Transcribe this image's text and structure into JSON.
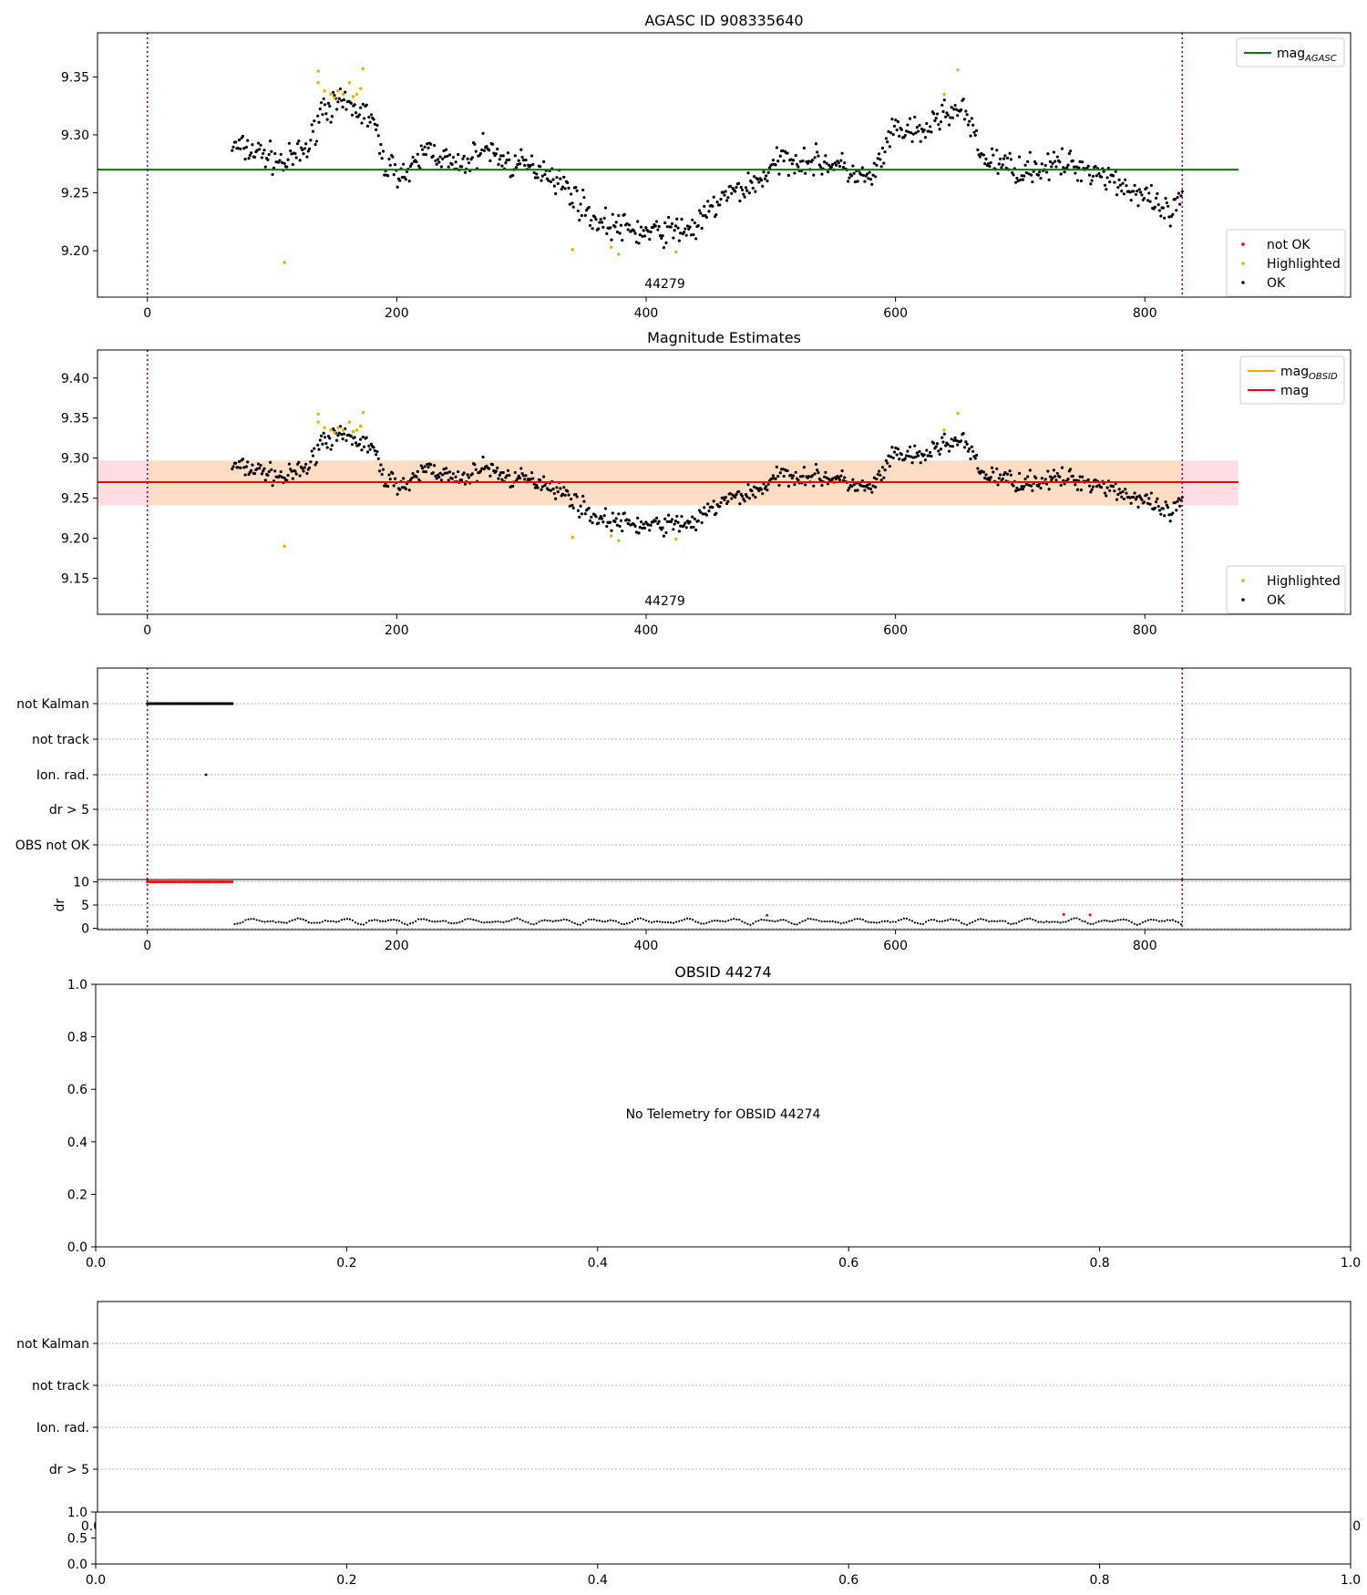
{
  "chart_data": [
    {
      "id": "p1",
      "type": "scatter",
      "title": "AGASC ID 908335640",
      "xlim": [
        -40,
        965
      ],
      "ylim": [
        9.16,
        9.388
      ],
      "x_ticks": [
        "0",
        "200",
        "400",
        "600",
        "800"
      ],
      "x_tick_values": [
        0,
        200,
        400,
        600,
        800
      ],
      "y_ticks": [
        "9.20",
        "9.25",
        "9.30",
        "9.35"
      ],
      "y_tick_values": [
        9.2,
        9.25,
        9.3,
        9.35
      ],
      "vlines": [
        0,
        830
      ],
      "vline_color": "#800080",
      "hline": {
        "y": 9.27,
        "x_range": [
          -40,
          875
        ],
        "color": "#008000"
      },
      "obsid_label": {
        "text": "44279",
        "x": 415
      },
      "legend_top": [
        {
          "label_main": "mag",
          "label_sub": "AGASC",
          "color": "#008000"
        }
      ],
      "legend_bottom": [
        {
          "label": "not OK",
          "color": "#ff0000"
        },
        {
          "label": "Highlighted",
          "color": "#ffa500"
        },
        {
          "label": "OK",
          "color": "#000000"
        }
      ],
      "series": [
        {
          "name": "OK",
          "color": "#000000",
          "x_range": [
            68,
            830
          ],
          "points": 800
        },
        {
          "name": "Highlighted",
          "color": "#ffa500",
          "points": [
            [
              110,
              9.19
            ],
            [
              137,
              9.355
            ],
            [
              137,
              9.345
            ],
            [
              142,
              9.338
            ],
            [
              147,
              9.335
            ],
            [
              150,
              9.332
            ],
            [
              153,
              9.338
            ],
            [
              157,
              9.335
            ],
            [
              162,
              9.345
            ],
            [
              165,
              9.333
            ],
            [
              168,
              9.335
            ],
            [
              171,
              9.34
            ],
            [
              173,
              9.357
            ],
            [
              341,
              9.201
            ],
            [
              372,
              9.203
            ],
            [
              378,
              9.197
            ],
            [
              424,
              9.199
            ],
            [
              639,
              9.335
            ],
            [
              650,
              9.356
            ]
          ]
        }
      ],
      "trend": [
        [
          68,
          9.29
        ],
        [
          90,
          9.285
        ],
        [
          110,
          9.275
        ],
        [
          130,
          9.29
        ],
        [
          140,
          9.325
        ],
        [
          160,
          9.325
        ],
        [
          180,
          9.315
        ],
        [
          190,
          9.275
        ],
        [
          210,
          9.265
        ],
        [
          225,
          9.29
        ],
        [
          250,
          9.27
        ],
        [
          270,
          9.29
        ],
        [
          290,
          9.275
        ],
        [
          320,
          9.27
        ],
        [
          340,
          9.25
        ],
        [
          360,
          9.225
        ],
        [
          400,
          9.215
        ],
        [
          440,
          9.22
        ],
        [
          460,
          9.245
        ],
        [
          490,
          9.26
        ],
        [
          510,
          9.28
        ],
        [
          550,
          9.275
        ],
        [
          580,
          9.26
        ],
        [
          600,
          9.305
        ],
        [
          620,
          9.3
        ],
        [
          640,
          9.32
        ],
        [
          655,
          9.32
        ],
        [
          670,
          9.28
        ],
        [
          700,
          9.27
        ],
        [
          740,
          9.275
        ],
        [
          770,
          9.265
        ],
        [
          800,
          9.245
        ],
        [
          820,
          9.23
        ],
        [
          830,
          9.245
        ]
      ]
    },
    {
      "id": "p2",
      "type": "scatter",
      "title": "Magnitude Estimates",
      "xlim": [
        -40,
        965
      ],
      "ylim": [
        9.105,
        9.435
      ],
      "x_ticks": [
        "0",
        "200",
        "400",
        "600",
        "800"
      ],
      "x_tick_values": [
        0,
        200,
        400,
        600,
        800
      ],
      "y_ticks": [
        "9.15",
        "9.20",
        "9.25",
        "9.30",
        "9.35",
        "9.40"
      ],
      "y_tick_values": [
        9.15,
        9.2,
        9.25,
        9.3,
        9.35,
        9.4
      ],
      "vlines": [
        0,
        830
      ],
      "vline_color": "#800080",
      "band_pink": {
        "x_range": [
          -40,
          875
        ],
        "y_range": [
          9.241,
          9.297
        ],
        "color": "#ffdde3"
      },
      "band_orange": {
        "x_range": [
          0,
          830
        ],
        "y_range": [
          9.241,
          9.297
        ],
        "color": "#ffdcc4"
      },
      "hline": {
        "y": 9.27,
        "x_range": [
          -40,
          875
        ],
        "color": "#ff0000"
      },
      "obsid_label": {
        "text": "44279",
        "x": 415
      },
      "legend_top": [
        {
          "label_main": "mag",
          "label_sub": "OBSID",
          "color": "#ffa500"
        },
        {
          "label_main": "mag",
          "label_sub": "",
          "color": "#ff0000"
        }
      ],
      "legend_bottom": [
        {
          "label": "Highlighted",
          "color": "#ffa500"
        },
        {
          "label": "OK",
          "color": "#000000"
        }
      ]
    },
    {
      "id": "p3",
      "type": "scatter",
      "xlim": [
        -40,
        965
      ],
      "flag_rows": [
        "not Kalman",
        "not track",
        "Ion. rad.",
        "dr > 5",
        "OBS not OK"
      ],
      "flag_points": [
        {
          "row": 0,
          "x_range": [
            0,
            68
          ],
          "count": 42
        },
        {
          "row": 2,
          "x": 47
        }
      ],
      "vlines": [
        0,
        830
      ],
      "vline_color": "#800080"
    },
    {
      "id": "p4",
      "type": "line",
      "xlim": [
        -40,
        965
      ],
      "ylim": [
        -0.3,
        10.5
      ],
      "ylabel": "dr",
      "x_ticks": [
        "0",
        "200",
        "400",
        "600",
        "800"
      ],
      "x_tick_values": [
        0,
        200,
        400,
        600,
        800
      ],
      "y_ticks": [
        "0",
        "5",
        "10"
      ],
      "y_tick_values": [
        0,
        5,
        10
      ],
      "red_segment": {
        "y": 10,
        "x_range": [
          0,
          68
        ],
        "count": 40
      },
      "red_points": [
        [
          497,
          2.8
        ],
        [
          735,
          3.0
        ],
        [
          756,
          2.9
        ]
      ],
      "vlines": [
        0,
        830
      ],
      "vline_color": "#800080"
    },
    {
      "id": "p5",
      "type": "scatter",
      "title": "OBSID 44274",
      "message": "No Telemetry for OBSID 44274",
      "xlim": [
        0,
        1
      ],
      "ylim": [
        0,
        1
      ],
      "x_ticks": [
        "0.0",
        "0.2",
        "0.4",
        "0.6",
        "0.8",
        "1.0"
      ],
      "x_tick_values": [
        0,
        0.2,
        0.4,
        0.6,
        0.8,
        1
      ],
      "y_ticks": [
        "0.0",
        "0.2",
        "0.4",
        "0.6",
        "0.8",
        "1.0"
      ],
      "y_tick_values": [
        0,
        0.2,
        0.4,
        0.6,
        0.8,
        1
      ]
    },
    {
      "id": "p6",
      "type": "scatter",
      "flag_rows": [
        "not Kalman",
        "not track",
        "Ion. rad.",
        "dr > 5"
      ],
      "partial_x_ticks": [
        "0.0",
        "1.0"
      ]
    },
    {
      "id": "p7",
      "type": "scatter",
      "xlim": [
        0,
        1
      ],
      "ylim": [
        0,
        1
      ],
      "x_ticks": [
        "0.0",
        "0.2",
        "0.4",
        "0.6",
        "0.8",
        "1.0"
      ],
      "x_tick_values": [
        0,
        0.2,
        0.4,
        0.6,
        0.8,
        1
      ],
      "y_ticks": [
        "0.0",
        "0.5",
        "1.0"
      ],
      "y_tick_values": [
        0,
        0.5,
        1
      ]
    }
  ]
}
